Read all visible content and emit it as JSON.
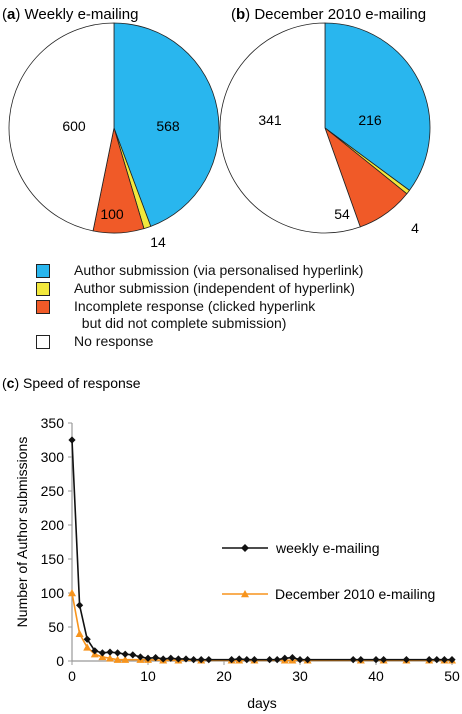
{
  "panels": {
    "a": {
      "letter": "a",
      "title": "Weekly e-mailing"
    },
    "b": {
      "letter": "b",
      "title": "December 2010 e-mailing"
    },
    "c": {
      "letter": "c",
      "title": "Speed of response"
    }
  },
  "colors": {
    "author_link": "#29b6ee",
    "author_indep": "#f2e83c",
    "incomplete": "#f05a28",
    "no_response": "#ffffff",
    "weekly_line": "#111111",
    "december_line": "#f7941d"
  },
  "legend": [
    {
      "label": "Author submission (via personalised hyperlink)",
      "color": "#29b6ee"
    },
    {
      "label": "Author submission (independent of hyperlink)",
      "color": "#f2e83c"
    },
    {
      "label": "Incomplete response (clicked hyperlink\n  but did not complete submission)",
      "color": "#f05a28"
    },
    {
      "label": "No response",
      "color": "#ffffff"
    }
  ],
  "chart_data": [
    {
      "type": "pie",
      "title": "Weekly e-mailing",
      "labels": [
        "Author submission (via personalised hyperlink)",
        "Author submission (independent of hyperlink)",
        "Incomplete response (clicked hyperlink but did not complete submission)",
        "No response"
      ],
      "values": [
        568,
        14,
        100,
        600
      ],
      "value_labels": [
        "568",
        "14",
        "100",
        "600"
      ]
    },
    {
      "type": "pie",
      "title": "December 2010 e-mailing",
      "labels": [
        "Author submission (via personalised hyperlink)",
        "Author submission (independent of hyperlink)",
        "Incomplete response (clicked hyperlink but did not complete submission)",
        "No response"
      ],
      "values": [
        216,
        4,
        54,
        341
      ],
      "value_labels": [
        "216",
        "4",
        "54",
        "341"
      ]
    },
    {
      "type": "line",
      "title": "Speed of response",
      "xlabel": "days",
      "ylabel": "Number of Author submissions",
      "xlim": [
        0,
        50
      ],
      "ylim": [
        0,
        350
      ],
      "xticks": [
        0,
        10,
        20,
        30,
        40,
        50
      ],
      "yticks": [
        0,
        50,
        100,
        150,
        200,
        250,
        300,
        350
      ],
      "legend_position": "right",
      "series": [
        {
          "name": "weekly e-mailing",
          "marker": "diamond",
          "x": [
            0,
            1,
            2,
            3,
            4,
            5,
            6,
            7,
            8,
            9,
            10,
            11,
            12,
            13,
            14,
            15,
            16,
            17,
            18,
            21,
            22,
            23,
            24,
            26,
            27,
            28,
            29,
            30,
            31,
            37,
            38,
            40,
            41,
            44,
            47,
            48,
            49,
            50
          ],
          "y": [
            325,
            82,
            32,
            15,
            12,
            13,
            12,
            10,
            9,
            6,
            4,
            5,
            3,
            4,
            3,
            3,
            2,
            2,
            2,
            2,
            3,
            2,
            2,
            2,
            2,
            4,
            5,
            2,
            2,
            2,
            2,
            2,
            2,
            2,
            2,
            2,
            2,
            2
          ]
        },
        {
          "name": "December 2010 e-mailing",
          "marker": "triangle",
          "x": [
            0,
            1,
            2,
            3,
            4,
            5,
            6,
            7,
            9,
            10,
            12,
            14,
            17,
            21,
            22,
            24,
            28,
            29,
            31,
            38,
            41,
            44,
            47,
            49,
            50
          ],
          "y": [
            100,
            40,
            20,
            10,
            6,
            4,
            2,
            2,
            2,
            2,
            1,
            1,
            1,
            1,
            1,
            1,
            1,
            1,
            1,
            1,
            1,
            1,
            1,
            1,
            1
          ]
        }
      ]
    }
  ]
}
